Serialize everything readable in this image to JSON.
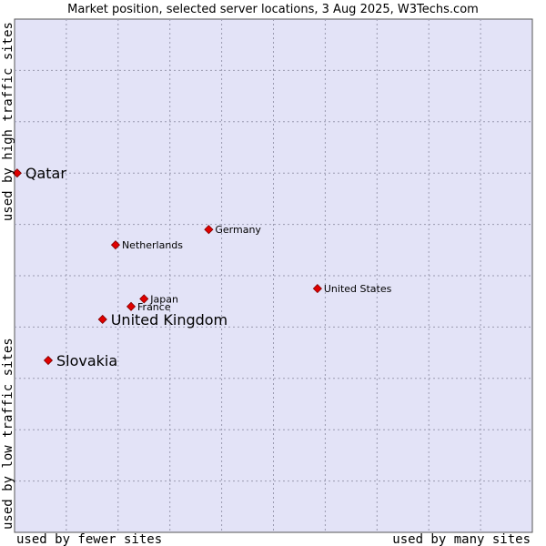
{
  "chart_data": {
    "type": "scatter",
    "title": "Market position, selected server locations, 3 Aug 2025, W3Techs.com",
    "xlabel_left": "used by fewer sites",
    "xlabel_right": "used by many sites",
    "ylabel_bottom": "used by low traffic sites",
    "ylabel_top": "used by high traffic sites",
    "xlim": [
      0,
      100
    ],
    "ylim": [
      0,
      100
    ],
    "grid": true,
    "points": [
      {
        "name": "Qatar",
        "x": 0.5,
        "y": 70.0,
        "size": "large"
      },
      {
        "name": "Germany",
        "x": 37.5,
        "y": 59.0,
        "size": "small"
      },
      {
        "name": "Netherlands",
        "x": 19.5,
        "y": 56.0,
        "size": "small"
      },
      {
        "name": "United States",
        "x": 58.5,
        "y": 47.5,
        "size": "small"
      },
      {
        "name": "Japan",
        "x": 25.0,
        "y": 45.5,
        "size": "small"
      },
      {
        "name": "France",
        "x": 22.5,
        "y": 44.0,
        "size": "small"
      },
      {
        "name": "United Kingdom",
        "x": 17.0,
        "y": 41.5,
        "size": "large"
      },
      {
        "name": "Slovakia",
        "x": 6.5,
        "y": 33.5,
        "size": "large"
      }
    ],
    "colors": {
      "plot_bg": "#e3e3f7",
      "point": "#e00000",
      "point_edge": "#800000",
      "grid": "#9a9ab0"
    }
  }
}
